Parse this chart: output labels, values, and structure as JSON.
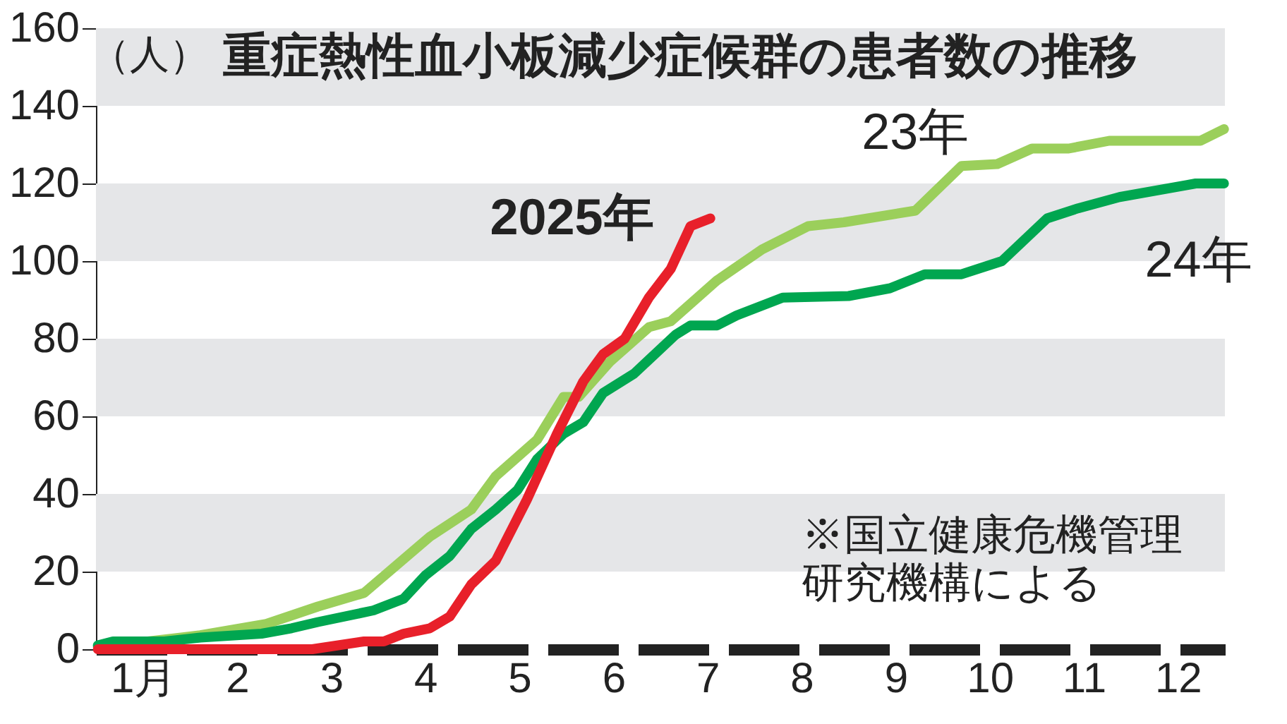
{
  "chart_data": {
    "type": "line",
    "title": "重症熱性血小板減少症候群の患者数の推移",
    "ylabel": "（人）",
    "annotations": [
      "※国立健康危機管理研究機構による"
    ],
    "xlim": [
      0,
      12
    ],
    "xticks": [
      {
        "value": 0.5,
        "label": "1月"
      },
      {
        "value": 1.5,
        "label": "2"
      },
      {
        "value": 2.5,
        "label": "3"
      },
      {
        "value": 3.5,
        "label": "4"
      },
      {
        "value": 4.5,
        "label": "5"
      },
      {
        "value": 5.5,
        "label": "6"
      },
      {
        "value": 6.5,
        "label": "7"
      },
      {
        "value": 7.5,
        "label": "8"
      },
      {
        "value": 8.5,
        "label": "9"
      },
      {
        "value": 9.5,
        "label": "10"
      },
      {
        "value": 10.5,
        "label": "11"
      },
      {
        "value": 11.5,
        "label": "12"
      }
    ],
    "ylim": [
      0,
      160
    ],
    "yticks": [
      0,
      20,
      40,
      60,
      80,
      100,
      120,
      140,
      160
    ],
    "grid": false,
    "line_style": "solid",
    "bands": [
      {
        "axis": "y",
        "from": 20,
        "to": 40,
        "color": "#e5e6e8"
      },
      {
        "axis": "y",
        "from": 60,
        "to": 80,
        "color": "#e5e6e8"
      },
      {
        "axis": "y",
        "from": 100,
        "to": 120,
        "color": "#e5e6e8"
      },
      {
        "axis": "y",
        "from": 140,
        "to": 160,
        "color": "#e5e6e8"
      }
    ],
    "series": [
      {
        "name": "23年",
        "color": "#9bcf5b",
        "x": [
          0.02,
          1.11,
          1.81,
          2.36,
          2.85,
          3.55,
          3.99,
          4.25,
          4.69,
          4.97,
          5.13,
          5.46,
          5.88,
          6.11,
          6.6,
          7.08,
          7.57,
          7.95,
          8.71,
          9.2,
          9.58,
          9.95,
          10.34,
          10.77,
          11.74,
          11.99
        ],
        "values": [
          0.5,
          3.6,
          6.5,
          11,
          14.5,
          29,
          36,
          44.6,
          54,
          65,
          65,
          74,
          83,
          84.5,
          95,
          103,
          109,
          110,
          113,
          124.5,
          125,
          129,
          129,
          131,
          131,
          134
        ]
      },
      {
        "name": "24年",
        "color": "#00a650",
        "x": [
          0.02,
          0.18,
          0.73,
          1.11,
          1.76,
          2.08,
          2.36,
          2.95,
          3.27,
          3.5,
          3.76,
          3.99,
          4.25,
          4.48,
          4.69,
          4.97,
          5.18,
          5.39,
          5.72,
          6.16,
          6.32,
          6.6,
          6.81,
          7.3,
          8.0,
          8.44,
          8.81,
          9.2,
          9.63,
          10.11,
          10.44,
          10.88,
          11.69,
          11.99
        ],
        "values": [
          1,
          2,
          2,
          3,
          4,
          5.4,
          7,
          10,
          13,
          19,
          24,
          31,
          36,
          41,
          49,
          55.5,
          58.5,
          66,
          71,
          81,
          83.4,
          83.4,
          86,
          90.6,
          91,
          93,
          96.6,
          96.6,
          100,
          111,
          113.6,
          116.5,
          120,
          120
        ]
      },
      {
        "name": "2025年",
        "color": "#e8202a",
        "x": [
          0.02,
          2.3,
          2.85,
          3.06,
          3.27,
          3.55,
          3.76,
          3.99,
          4.25,
          4.58,
          4.9,
          5.18,
          5.39,
          5.62,
          5.88,
          6.11,
          6.32,
          6.53
        ],
        "values": [
          0,
          0,
          2,
          2,
          4,
          5.4,
          8.4,
          16.7,
          22.8,
          38.5,
          55.5,
          69,
          76,
          80,
          90.7,
          98,
          109,
          111
        ]
      }
    ]
  }
}
